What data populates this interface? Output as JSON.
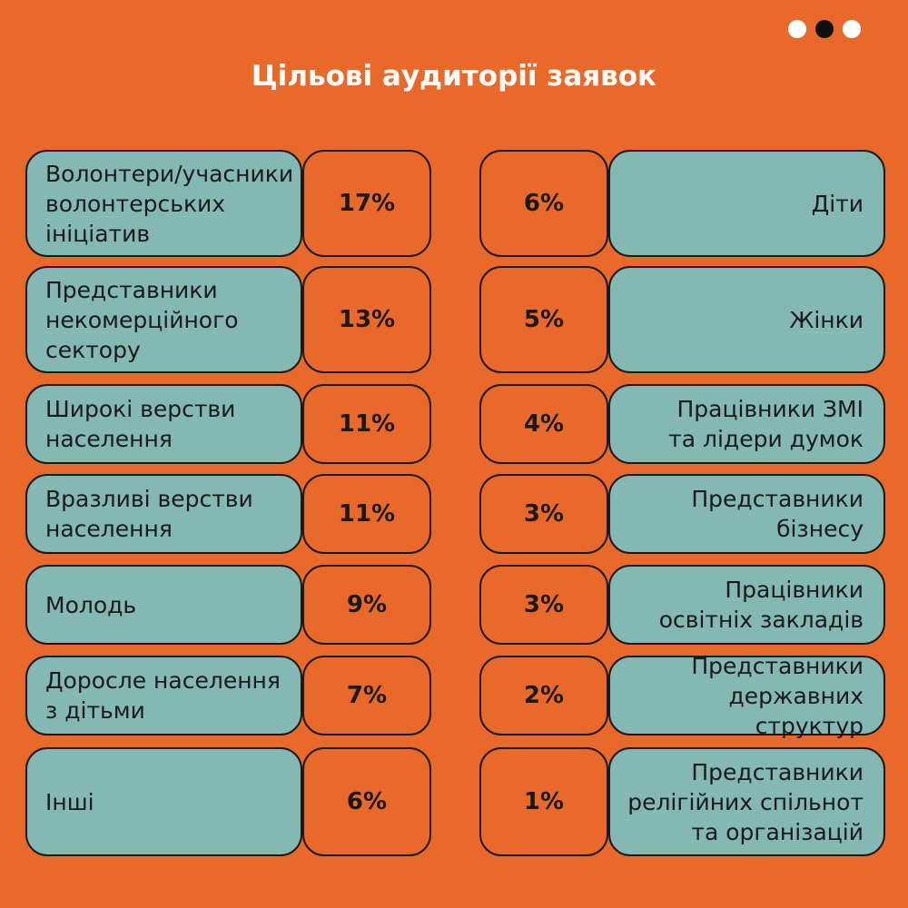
{
  "title": "Цільові аудиторії заявок",
  "colors": {
    "background": "#e8692a",
    "label_box": "#84b8b3",
    "border": "#1a1a1a"
  },
  "chart_data": {
    "type": "table",
    "title": "Цільові аудиторії заявок",
    "left": [
      {
        "label": "Волонтери/учасники\nволонтерських\nініціатив",
        "value": 17,
        "display": "17%"
      },
      {
        "label": "Представники\nнекомерційного\nсектору",
        "value": 13,
        "display": "13%"
      },
      {
        "label": "Широкі верстви\nнаселення",
        "value": 11,
        "display": "11%"
      },
      {
        "label": "Вразливі верстви\nнаселення",
        "value": 11,
        "display": "11%"
      },
      {
        "label": "Молодь",
        "value": 9,
        "display": "9%"
      },
      {
        "label": "Доросле населення\nз дітьми",
        "value": 7,
        "display": "7%"
      },
      {
        "label": "Інші",
        "value": 6,
        "display": "6%"
      }
    ],
    "right": [
      {
        "label": "Діти",
        "value": 6,
        "display": "6%"
      },
      {
        "label": "Жінки",
        "value": 5,
        "display": "5%"
      },
      {
        "label": "Працівники ЗМІ\nта лідери думок",
        "value": 4,
        "display": "4%"
      },
      {
        "label": "Представники\nбізнесу",
        "value": 3,
        "display": "3%"
      },
      {
        "label": "Працівники\nосвітніх закладів",
        "value": 3,
        "display": "3%"
      },
      {
        "label": "Представники\nдержавних структур",
        "value": 2,
        "display": "2%"
      },
      {
        "label": "Представники\nрелігійних спільнот\nта організацій",
        "value": 1,
        "display": "1%"
      }
    ]
  }
}
